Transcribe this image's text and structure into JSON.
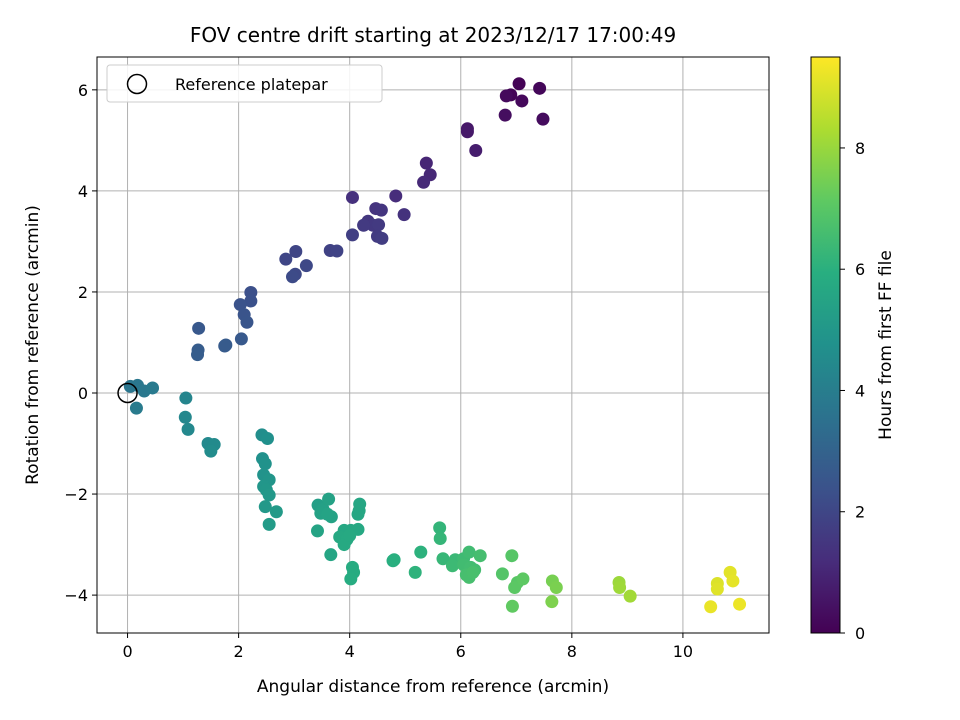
{
  "chart_data": {
    "type": "scatter",
    "title": "FOV centre drift starting at 2023/12/17 17:00:49",
    "xlabel": "Angular distance from reference (arcmin)",
    "ylabel": "Rotation from reference (arcmin)",
    "xlim": [
      -0.55,
      11.55
    ],
    "ylim": [
      -4.75,
      6.65
    ],
    "xticks": [
      0,
      2,
      4,
      6,
      8,
      10
    ],
    "yticks": [
      -4,
      -2,
      0,
      2,
      4,
      6
    ],
    "xtick_labels": [
      "0",
      "2",
      "4",
      "6",
      "8",
      "10"
    ],
    "ytick_labels": [
      "−4",
      "−2",
      "0",
      "2",
      "4",
      "6"
    ],
    "grid": true,
    "colormap": "viridis",
    "colorbar": {
      "label": "Hours from first FF file",
      "range": [
        0,
        9.5
      ],
      "ticks": [
        0,
        2,
        4,
        6,
        8
      ],
      "tick_labels": [
        "0",
        "2",
        "4",
        "6",
        "8"
      ]
    },
    "legend": {
      "position": "upper-left",
      "entries": [
        {
          "label": "Reference platepar",
          "marker": "open-circle"
        }
      ]
    },
    "reference_point": {
      "x": 0,
      "y": 0
    },
    "points": [
      {
        "x": 7.05,
        "y": 6.12,
        "t": 0.05
      },
      {
        "x": 6.9,
        "y": 5.9,
        "t": 0.1
      },
      {
        "x": 7.42,
        "y": 6.03,
        "t": 0.15
      },
      {
        "x": 7.1,
        "y": 5.78,
        "t": 0.2
      },
      {
        "x": 6.82,
        "y": 5.88,
        "t": 0.25
      },
      {
        "x": 7.48,
        "y": 5.42,
        "t": 0.3
      },
      {
        "x": 6.8,
        "y": 5.5,
        "t": 0.35
      },
      {
        "x": 6.12,
        "y": 5.23,
        "t": 0.6
      },
      {
        "x": 6.12,
        "y": 5.17,
        "t": 0.65
      },
      {
        "x": 6.27,
        "y": 4.8,
        "t": 0.75
      },
      {
        "x": 5.38,
        "y": 4.55,
        "t": 1.0
      },
      {
        "x": 5.45,
        "y": 4.32,
        "t": 1.05
      },
      {
        "x": 5.33,
        "y": 4.17,
        "t": 1.1
      },
      {
        "x": 4.83,
        "y": 3.9,
        "t": 1.2
      },
      {
        "x": 4.05,
        "y": 3.87,
        "t": 1.3
      },
      {
        "x": 4.98,
        "y": 3.53,
        "t": 1.35
      },
      {
        "x": 4.47,
        "y": 3.65,
        "t": 1.4
      },
      {
        "x": 4.57,
        "y": 3.62,
        "t": 1.45
      },
      {
        "x": 4.33,
        "y": 3.4,
        "t": 1.5
      },
      {
        "x": 4.42,
        "y": 3.32,
        "t": 1.55
      },
      {
        "x": 4.52,
        "y": 3.33,
        "t": 1.6
      },
      {
        "x": 4.25,
        "y": 3.32,
        "t": 1.62
      },
      {
        "x": 4.5,
        "y": 3.1,
        "t": 1.65
      },
      {
        "x": 4.58,
        "y": 3.06,
        "t": 1.7
      },
      {
        "x": 4.05,
        "y": 3.13,
        "t": 1.75
      },
      {
        "x": 3.65,
        "y": 2.82,
        "t": 1.85
      },
      {
        "x": 3.77,
        "y": 2.81,
        "t": 1.9
      },
      {
        "x": 3.03,
        "y": 2.8,
        "t": 1.95
      },
      {
        "x": 2.85,
        "y": 2.65,
        "t": 2.0
      },
      {
        "x": 3.22,
        "y": 2.52,
        "t": 2.05
      },
      {
        "x": 3.02,
        "y": 2.35,
        "t": 2.1
      },
      {
        "x": 2.97,
        "y": 2.3,
        "t": 2.15
      },
      {
        "x": 2.22,
        "y": 1.99,
        "t": 2.3
      },
      {
        "x": 2.22,
        "y": 1.82,
        "t": 2.35
      },
      {
        "x": 2.03,
        "y": 1.75,
        "t": 2.4
      },
      {
        "x": 2.1,
        "y": 1.55,
        "t": 2.45
      },
      {
        "x": 2.15,
        "y": 1.4,
        "t": 2.5
      },
      {
        "x": 1.28,
        "y": 1.28,
        "t": 2.6
      },
      {
        "x": 2.05,
        "y": 1.07,
        "t": 2.65
      },
      {
        "x": 1.77,
        "y": 0.95,
        "t": 2.7
      },
      {
        "x": 1.75,
        "y": 0.93,
        "t": 2.72
      },
      {
        "x": 1.27,
        "y": 0.85,
        "t": 2.75
      },
      {
        "x": 1.26,
        "y": 0.76,
        "t": 2.8
      },
      {
        "x": 0.05,
        "y": 0.13,
        "t": 3.7
      },
      {
        "x": 0.18,
        "y": 0.15,
        "t": 3.75
      },
      {
        "x": 0.3,
        "y": 0.04,
        "t": 3.8
      },
      {
        "x": 0.45,
        "y": 0.1,
        "t": 3.85
      },
      {
        "x": 0.16,
        "y": -0.3,
        "t": 3.9
      },
      {
        "x": 1.05,
        "y": -0.1,
        "t": 4.3
      },
      {
        "x": 1.04,
        "y": -0.48,
        "t": 4.35
      },
      {
        "x": 1.09,
        "y": -0.72,
        "t": 4.4
      },
      {
        "x": 1.45,
        "y": -1.0,
        "t": 4.45
      },
      {
        "x": 1.56,
        "y": -1.02,
        "t": 4.5
      },
      {
        "x": 1.5,
        "y": -1.15,
        "t": 4.55
      },
      {
        "x": 2.42,
        "y": -0.83,
        "t": 4.65
      },
      {
        "x": 2.52,
        "y": -0.9,
        "t": 4.7
      },
      {
        "x": 2.43,
        "y": -1.3,
        "t": 4.75
      },
      {
        "x": 2.48,
        "y": -1.4,
        "t": 4.8
      },
      {
        "x": 2.45,
        "y": -1.62,
        "t": 4.85
      },
      {
        "x": 2.55,
        "y": -1.72,
        "t": 4.9
      },
      {
        "x": 2.45,
        "y": -1.85,
        "t": 4.95
      },
      {
        "x": 2.5,
        "y": -1.92,
        "t": 5.0
      },
      {
        "x": 2.55,
        "y": -2.02,
        "t": 5.02
      },
      {
        "x": 2.48,
        "y": -2.25,
        "t": 5.05
      },
      {
        "x": 2.68,
        "y": -2.35,
        "t": 5.1
      },
      {
        "x": 2.55,
        "y": -2.6,
        "t": 5.15
      },
      {
        "x": 3.43,
        "y": -2.22,
        "t": 5.3
      },
      {
        "x": 3.52,
        "y": -2.3,
        "t": 5.35
      },
      {
        "x": 3.62,
        "y": -2.1,
        "t": 5.4
      },
      {
        "x": 3.48,
        "y": -2.38,
        "t": 5.42
      },
      {
        "x": 3.67,
        "y": -2.45,
        "t": 5.45
      },
      {
        "x": 3.6,
        "y": -2.4,
        "t": 5.48
      },
      {
        "x": 3.42,
        "y": -2.73,
        "t": 5.5
      },
      {
        "x": 3.66,
        "y": -3.2,
        "t": 5.55
      },
      {
        "x": 4.18,
        "y": -2.2,
        "t": 5.6
      },
      {
        "x": 4.17,
        "y": -2.33,
        "t": 5.62
      },
      {
        "x": 4.15,
        "y": -2.4,
        "t": 5.63
      },
      {
        "x": 3.9,
        "y": -2.72,
        "t": 5.65
      },
      {
        "x": 4.02,
        "y": -2.72,
        "t": 5.67
      },
      {
        "x": 4.15,
        "y": -2.7,
        "t": 5.68
      },
      {
        "x": 3.82,
        "y": -2.85,
        "t": 5.7
      },
      {
        "x": 3.95,
        "y": -2.9,
        "t": 5.72
      },
      {
        "x": 3.9,
        "y": -3.0,
        "t": 5.74
      },
      {
        "x": 4.0,
        "y": -2.82,
        "t": 5.75
      },
      {
        "x": 4.05,
        "y": -3.45,
        "t": 5.8
      },
      {
        "x": 4.07,
        "y": -3.55,
        "t": 5.82
      },
      {
        "x": 4.02,
        "y": -3.68,
        "t": 5.85
      },
      {
        "x": 4.78,
        "y": -3.32,
        "t": 5.95
      },
      {
        "x": 4.8,
        "y": -3.3,
        "t": 5.97
      },
      {
        "x": 5.28,
        "y": -3.15,
        "t": 6.05
      },
      {
        "x": 5.18,
        "y": -3.55,
        "t": 6.1
      },
      {
        "x": 5.62,
        "y": -2.67,
        "t": 6.2
      },
      {
        "x": 5.63,
        "y": -2.88,
        "t": 6.25
      },
      {
        "x": 5.68,
        "y": -3.28,
        "t": 6.3
      },
      {
        "x": 5.9,
        "y": -3.3,
        "t": 6.35
      },
      {
        "x": 5.85,
        "y": -3.42,
        "t": 6.4
      },
      {
        "x": 6.05,
        "y": -3.28,
        "t": 6.45
      },
      {
        "x": 6.15,
        "y": -3.15,
        "t": 6.5
      },
      {
        "x": 6.05,
        "y": -3.4,
        "t": 6.52
      },
      {
        "x": 6.18,
        "y": -3.45,
        "t": 6.55
      },
      {
        "x": 6.25,
        "y": -3.5,
        "t": 6.57
      },
      {
        "x": 6.35,
        "y": -3.22,
        "t": 6.6
      },
      {
        "x": 6.1,
        "y": -3.6,
        "t": 6.62
      },
      {
        "x": 6.15,
        "y": -3.65,
        "t": 6.65
      },
      {
        "x": 6.22,
        "y": -3.55,
        "t": 6.67
      },
      {
        "x": 6.75,
        "y": -3.58,
        "t": 6.9
      },
      {
        "x": 6.92,
        "y": -3.22,
        "t": 6.95
      },
      {
        "x": 7.02,
        "y": -3.75,
        "t": 7.0
      },
      {
        "x": 6.97,
        "y": -3.85,
        "t": 7.05
      },
      {
        "x": 7.12,
        "y": -3.68,
        "t": 7.1
      },
      {
        "x": 6.93,
        "y": -4.22,
        "t": 7.15
      },
      {
        "x": 7.65,
        "y": -3.72,
        "t": 7.5
      },
      {
        "x": 7.72,
        "y": -3.85,
        "t": 7.55
      },
      {
        "x": 7.64,
        "y": -4.13,
        "t": 7.6
      },
      {
        "x": 8.85,
        "y": -3.75,
        "t": 8.05
      },
      {
        "x": 8.86,
        "y": -3.85,
        "t": 8.1
      },
      {
        "x": 9.05,
        "y": -4.02,
        "t": 8.15
      },
      {
        "x": 10.62,
        "y": -3.77,
        "t": 9.0
      },
      {
        "x": 10.62,
        "y": -3.88,
        "t": 9.05
      },
      {
        "x": 10.85,
        "y": -3.55,
        "t": 9.1
      },
      {
        "x": 10.9,
        "y": -3.72,
        "t": 9.15
      },
      {
        "x": 10.5,
        "y": -4.23,
        "t": 9.2
      },
      {
        "x": 11.02,
        "y": -4.18,
        "t": 9.25
      }
    ]
  }
}
